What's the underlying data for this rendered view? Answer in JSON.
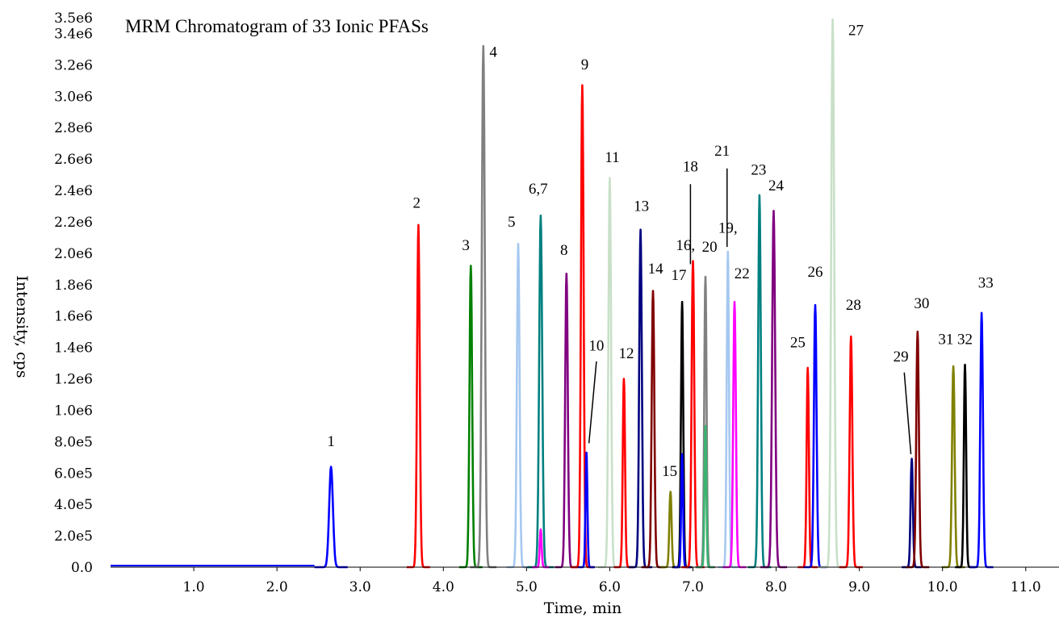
{
  "chart_data": {
    "type": "line",
    "title": "MRM Chromatogram of 33 Ionic PFASs",
    "xlabel": "Time, min",
    "ylabel": "Intensity, cps",
    "xlim": [
      0.0,
      11.4
    ],
    "ylim": [
      0,
      3500000
    ],
    "x_ticks": [
      "1.0",
      "2.0",
      "3.0",
      "4.0",
      "5.0",
      "6.0",
      "7.0",
      "8.0",
      "9.0",
      "10.0",
      "11.0"
    ],
    "y_ticks": [
      "0.0",
      "2.0e5",
      "4.0e5",
      "6.0e5",
      "8.0e5",
      "1.0e6",
      "1.2e6",
      "1.4e6",
      "1.6e6",
      "1.8e6",
      "2.0e6",
      "2.2e6",
      "2.4e6",
      "2.6e6",
      "2.8e6",
      "3.0e6",
      "3.2e6",
      "3.4e6",
      "3.5e6"
    ],
    "grid": false,
    "legend": "none",
    "baseline": {
      "x_start": 0.0,
      "x_end": 2.45,
      "value": 10000,
      "color": "#0000ff"
    },
    "peaks": [
      {
        "rt": 2.65,
        "height": 640000,
        "color": "#0000ff",
        "width": 0.05
      },
      {
        "rt": 3.7,
        "height": 2180000,
        "color": "#ff0000",
        "width": 0.035
      },
      {
        "rt": 4.33,
        "height": 1920000,
        "color": "#008000",
        "width": 0.035
      },
      {
        "rt": 4.48,
        "height": 3320000,
        "color": "#808080",
        "width": 0.04
      },
      {
        "rt": 4.9,
        "height": 2060000,
        "color": "#a6c8f0",
        "width": 0.035
      },
      {
        "rt": 5.17,
        "height": 2240000,
        "color": "#008080",
        "width": 0.04
      },
      {
        "rt": 5.17,
        "height": 240000,
        "color": "#ff00ff",
        "width": 0.025
      },
      {
        "rt": 5.48,
        "height": 1870000,
        "color": "#800080",
        "width": 0.035
      },
      {
        "rt": 5.67,
        "height": 3070000,
        "color": "#ff0000",
        "width": 0.035
      },
      {
        "rt": 5.72,
        "height": 730000,
        "color": "#0000ff",
        "width": 0.025
      },
      {
        "rt": 6.0,
        "height": 2480000,
        "color": "#c8e0c8",
        "width": 0.035
      },
      {
        "rt": 6.17,
        "height": 1200000,
        "color": "#ff0000",
        "width": 0.03
      },
      {
        "rt": 6.37,
        "height": 2150000,
        "color": "#000080",
        "width": 0.035
      },
      {
        "rt": 6.52,
        "height": 1760000,
        "color": "#800000",
        "width": 0.035
      },
      {
        "rt": 6.73,
        "height": 480000,
        "color": "#808000",
        "width": 0.03
      },
      {
        "rt": 6.87,
        "height": 1690000,
        "color": "#000000",
        "width": 0.03
      },
      {
        "rt": 6.87,
        "height": 720000,
        "color": "#0000ff",
        "width": 0.025
      },
      {
        "rt": 7.0,
        "height": 1950000,
        "color": "#ff0000",
        "width": 0.035
      },
      {
        "rt": 7.15,
        "height": 1850000,
        "color": "#808080",
        "width": 0.03
      },
      {
        "rt": 7.15,
        "height": 900000,
        "color": "#3cb371",
        "width": 0.025
      },
      {
        "rt": 7.42,
        "height": 2010000,
        "color": "#a6c8f0",
        "width": 0.03
      },
      {
        "rt": 7.5,
        "height": 1690000,
        "color": "#ff00ff",
        "width": 0.035
      },
      {
        "rt": 7.8,
        "height": 2370000,
        "color": "#008080",
        "width": 0.035
      },
      {
        "rt": 7.97,
        "height": 2270000,
        "color": "#800080",
        "width": 0.04
      },
      {
        "rt": 8.38,
        "height": 1270000,
        "color": "#ff0000",
        "width": 0.03
      },
      {
        "rt": 8.47,
        "height": 1670000,
        "color": "#0000ff",
        "width": 0.035
      },
      {
        "rt": 8.68,
        "height": 3490000,
        "color": "#c8e0c8",
        "width": 0.04
      },
      {
        "rt": 8.9,
        "height": 1470000,
        "color": "#ff0000",
        "width": 0.035
      },
      {
        "rt": 9.63,
        "height": 690000,
        "color": "#000080",
        "width": 0.03
      },
      {
        "rt": 9.7,
        "height": 1500000,
        "color": "#800000",
        "width": 0.035
      },
      {
        "rt": 10.13,
        "height": 1280000,
        "color": "#808000",
        "width": 0.035
      },
      {
        "rt": 10.27,
        "height": 1290000,
        "color": "#000000",
        "width": 0.03
      },
      {
        "rt": 10.47,
        "height": 1620000,
        "color": "#0000ff",
        "width": 0.035
      }
    ],
    "annotations": [
      {
        "text": "1",
        "x": 2.65,
        "y": 770000,
        "anchor": "middle"
      },
      {
        "text": "2",
        "x": 3.68,
        "y": 2290000,
        "anchor": "middle"
      },
      {
        "text": "3",
        "x": 4.27,
        "y": 2020000,
        "anchor": "middle"
      },
      {
        "text": "4",
        "x": 4.6,
        "y": 3250000,
        "anchor": "middle"
      },
      {
        "text": "5",
        "x": 4.82,
        "y": 2170000,
        "anchor": "middle"
      },
      {
        "text": "6,7",
        "x": 5.14,
        "y": 2380000,
        "anchor": "middle"
      },
      {
        "text": "8",
        "x": 5.45,
        "y": 1990000,
        "anchor": "middle"
      },
      {
        "text": "9",
        "x": 5.7,
        "y": 3170000,
        "anchor": "middle"
      },
      {
        "text": "10",
        "x": 5.84,
        "y": 1380000,
        "anchor": "middle"
      },
      {
        "text": "11",
        "x": 6.03,
        "y": 2580000,
        "anchor": "middle"
      },
      {
        "text": "12",
        "x": 6.2,
        "y": 1330000,
        "anchor": "middle"
      },
      {
        "text": "13",
        "x": 6.38,
        "y": 2270000,
        "anchor": "middle"
      },
      {
        "text": "14",
        "x": 6.55,
        "y": 1870000,
        "anchor": "middle"
      },
      {
        "text": "15",
        "x": 6.72,
        "y": 580000,
        "anchor": "middle"
      },
      {
        "text": "16,",
        "x": 6.91,
        "y": 2020000,
        "anchor": "middle"
      },
      {
        "text": "17",
        "x": 6.83,
        "y": 1830000,
        "anchor": "middle"
      },
      {
        "text": "18",
        "x": 6.97,
        "y": 2520000,
        "anchor": "middle"
      },
      {
        "text": "19,",
        "x": 7.42,
        "y": 2130000,
        "anchor": "middle"
      },
      {
        "text": "20",
        "x": 7.2,
        "y": 2010000,
        "anchor": "middle"
      },
      {
        "text": "21",
        "x": 7.35,
        "y": 2620000,
        "anchor": "middle"
      },
      {
        "text": "22",
        "x": 7.59,
        "y": 1840000,
        "anchor": "middle"
      },
      {
        "text": "23",
        "x": 7.79,
        "y": 2500000,
        "anchor": "middle"
      },
      {
        "text": "24",
        "x": 8.0,
        "y": 2400000,
        "anchor": "middle"
      },
      {
        "text": "25",
        "x": 8.26,
        "y": 1400000,
        "anchor": "middle"
      },
      {
        "text": "26",
        "x": 8.47,
        "y": 1850000,
        "anchor": "middle"
      },
      {
        "text": "27",
        "x": 8.96,
        "y": 3390000,
        "anchor": "middle"
      },
      {
        "text": "28",
        "x": 8.93,
        "y": 1640000,
        "anchor": "middle"
      },
      {
        "text": "29",
        "x": 9.5,
        "y": 1310000,
        "anchor": "middle"
      },
      {
        "text": "30",
        "x": 9.75,
        "y": 1650000,
        "anchor": "middle"
      },
      {
        "text": "31",
        "x": 10.04,
        "y": 1420000,
        "anchor": "middle"
      },
      {
        "text": "32",
        "x": 10.27,
        "y": 1420000,
        "anchor": "middle"
      },
      {
        "text": "33",
        "x": 10.52,
        "y": 1780000,
        "anchor": "middle"
      }
    ],
    "callout_lines": [
      {
        "x1": 6.97,
        "y1": 2440000,
        "x2": 6.97,
        "y2": 1930000
      },
      {
        "x1": 7.41,
        "y1": 2540000,
        "x2": 7.41,
        "y2": 2040000
      },
      {
        "x1": 5.84,
        "y1": 1310000,
        "x2": 5.75,
        "y2": 790000
      },
      {
        "x1": 9.54,
        "y1": 1240000,
        "x2": 9.62,
        "y2": 720000
      }
    ]
  }
}
